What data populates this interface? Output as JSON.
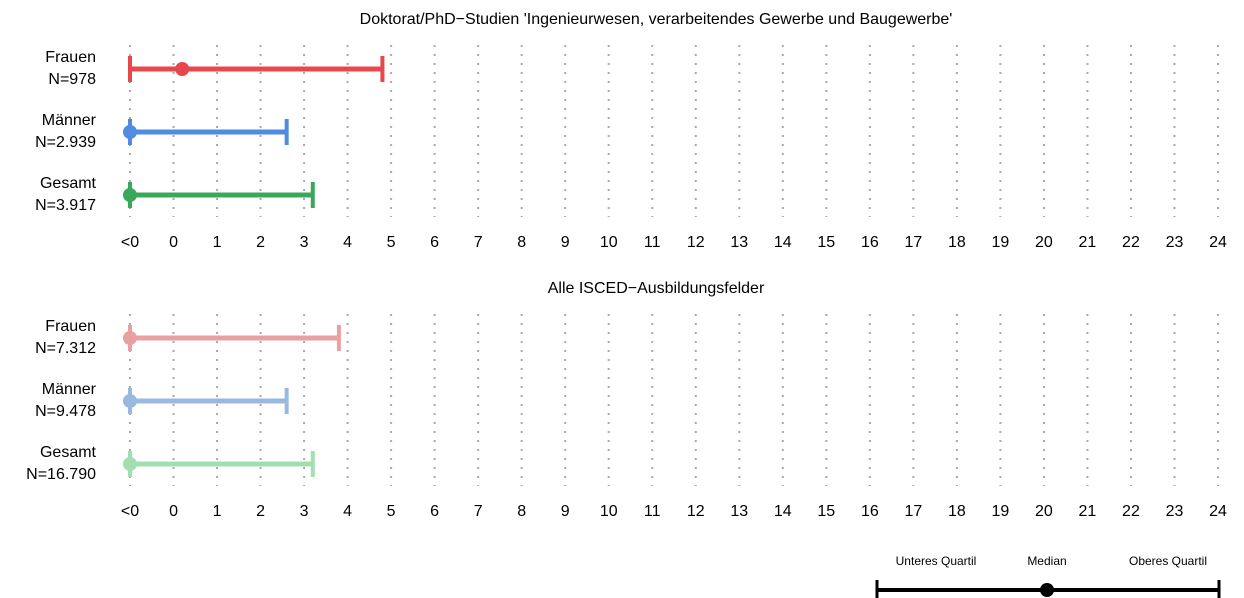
{
  "chart_data": [
    {
      "type": "range",
      "title": "Doktorat/PhD−Studien 'Ingenieurwesen, verarbeitendes Gewerbe und Baugewerbe'",
      "categories": [
        "Frauen",
        "Männer",
        "Gesamt"
      ],
      "n_labels": [
        "N=978",
        "N=2.939",
        "N=3.917"
      ],
      "lower": [
        -1,
        -1,
        -1
      ],
      "median": [
        0.2,
        -1,
        -1
      ],
      "upper": [
        4.8,
        2.6,
        3.2
      ],
      "colors": [
        "#e8474c",
        "#4f8be0",
        "#3aa85a"
      ],
      "xlim": [
        -1,
        24
      ],
      "xticks": [
        {
          "value": -1,
          "label": "<0"
        },
        0,
        1,
        2,
        3,
        4,
        5,
        6,
        7,
        8,
        9,
        10,
        11,
        12,
        13,
        14,
        15,
        16,
        17,
        18,
        19,
        20,
        21,
        22,
        23,
        24
      ],
      "grid": true
    },
    {
      "type": "range",
      "title": "Alle ISCED−Ausbildungsfelder",
      "categories": [
        "Frauen",
        "Männer",
        "Gesamt"
      ],
      "n_labels": [
        "N=7.312",
        "N=9.478",
        "N=16.790"
      ],
      "lower": [
        -1,
        -1,
        -1
      ],
      "median": [
        -1,
        -1,
        -1
      ],
      "upper": [
        3.8,
        2.6,
        3.2
      ],
      "colors": [
        "#e8a0a0",
        "#9ab9e0",
        "#a0e0b0"
      ],
      "xlim": [
        -1,
        24
      ],
      "xticks": [
        {
          "value": -1,
          "label": "<0"
        },
        0,
        1,
        2,
        3,
        4,
        5,
        6,
        7,
        8,
        9,
        10,
        11,
        12,
        13,
        14,
        15,
        16,
        17,
        18,
        19,
        20,
        21,
        22,
        23,
        24
      ],
      "grid": true
    }
  ],
  "legend": {
    "lower": "Unteres Quartil",
    "median": "Median",
    "upper": "Oberes Quartil"
  }
}
